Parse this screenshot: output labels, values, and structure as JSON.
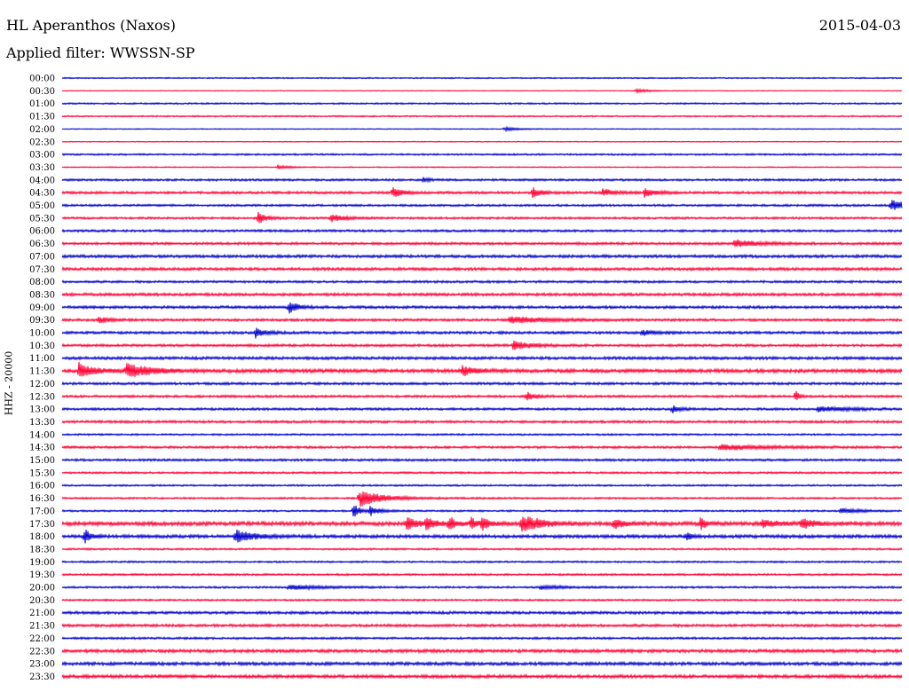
{
  "header": {
    "station": "HL Aperanthos (Naxos)",
    "date": "2015-04-03",
    "filter_label": "Applied filter:",
    "filter_name": "WWSSN-SP"
  },
  "channel_label": "HHZ - 20000",
  "colors": {
    "trace_even": "#0000cc",
    "trace_odd": "#ff0033",
    "text": "#000000",
    "background": "#ffffff"
  },
  "chart_data": {
    "type": "line",
    "x_unit": "minutes after row start",
    "x_range": [
      0,
      30
    ],
    "row_labels": [
      "00:00",
      "00:30",
      "01:00",
      "01:30",
      "02:00",
      "02:30",
      "03:00",
      "03:30",
      "04:00",
      "04:30",
      "05:00",
      "05:30",
      "06:00",
      "06:30",
      "07:00",
      "07:30",
      "08:00",
      "08:30",
      "09:00",
      "09:30",
      "10:00",
      "10:30",
      "11:00",
      "11:30",
      "12:00",
      "12:30",
      "13:00",
      "13:30",
      "14:00",
      "14:30",
      "15:00",
      "15:30",
      "16:00",
      "16:30",
      "17:00",
      "17:30",
      "18:00",
      "18:30",
      "19:00",
      "19:30",
      "20:00",
      "20:30",
      "21:00",
      "21:30",
      "22:00",
      "22:30",
      "23:00",
      "23:30"
    ],
    "noise": [
      0.7,
      0.4,
      0.9,
      0.8,
      0.5,
      0.5,
      1.0,
      0.6,
      1.2,
      1.4,
      1.2,
      1.2,
      1.3,
      1.4,
      1.6,
      1.6,
      1.3,
      1.6,
      1.5,
      1.4,
      1.5,
      1.4,
      1.6,
      2.0,
      1.4,
      1.3,
      1.3,
      1.4,
      1.0,
      1.3,
      1.3,
      1.1,
      1.0,
      1.0,
      1.0,
      2.2,
      1.8,
      1.0,
      1.0,
      1.1,
      1.1,
      1.0,
      1.5,
      1.5,
      1.2,
      1.8,
      1.8,
      1.8
    ],
    "events": [
      {
        "row": "00:30",
        "t": 20.5,
        "amp": 2,
        "dur": 0.5
      },
      {
        "row": "02:00",
        "t": 15.8,
        "amp": 2,
        "dur": 0.5
      },
      {
        "row": "03:30",
        "t": 7.7,
        "amp": 2,
        "dur": 0.4
      },
      {
        "row": "04:00",
        "t": 12.9,
        "amp": 3,
        "dur": 0.2
      },
      {
        "row": "04:30",
        "t": 11.8,
        "amp": 7,
        "dur": 0.3
      },
      {
        "row": "04:30",
        "t": 16.8,
        "amp": 6,
        "dur": 0.3
      },
      {
        "row": "04:30",
        "t": 19.3,
        "amp": 4,
        "dur": 0.4
      },
      {
        "row": "04:30",
        "t": 20.8,
        "amp": 5,
        "dur": 0.4
      },
      {
        "row": "05:00",
        "t": 29.6,
        "amp": 6,
        "dur": 0.6
      },
      {
        "row": "05:30",
        "t": 7.0,
        "amp": 7,
        "dur": 0.3
      },
      {
        "row": "05:30",
        "t": 9.6,
        "amp": 4,
        "dur": 0.5
      },
      {
        "row": "06:30",
        "t": 24.0,
        "amp": 4,
        "dur": 0.8
      },
      {
        "row": "09:00",
        "t": 8.1,
        "amp": 7,
        "dur": 0.3
      },
      {
        "row": "09:30",
        "t": 1.3,
        "amp": 4,
        "dur": 0.3
      },
      {
        "row": "09:30",
        "t": 16.0,
        "amp": 4,
        "dur": 1.2
      },
      {
        "row": "10:00",
        "t": 6.9,
        "amp": 6,
        "dur": 0.3
      },
      {
        "row": "10:00",
        "t": 20.7,
        "amp": 3,
        "dur": 0.4
      },
      {
        "row": "10:30",
        "t": 16.1,
        "amp": 5,
        "dur": 0.6
      },
      {
        "row": "11:30",
        "t": 0.6,
        "amp": 9,
        "dur": 0.5
      },
      {
        "row": "11:30",
        "t": 2.3,
        "amp": 8,
        "dur": 0.8
      },
      {
        "row": "11:30",
        "t": 14.3,
        "amp": 5,
        "dur": 0.5
      },
      {
        "row": "12:30",
        "t": 16.6,
        "amp": 5,
        "dur": 0.3
      },
      {
        "row": "12:30",
        "t": 26.2,
        "amp": 9,
        "dur": 0.1
      },
      {
        "row": "13:00",
        "t": 21.8,
        "amp": 4,
        "dur": 0.3
      },
      {
        "row": "13:00",
        "t": 27.0,
        "amp": 3,
        "dur": 1.0
      },
      {
        "row": "14:30",
        "t": 23.5,
        "amp": 3,
        "dur": 1.5
      },
      {
        "row": "16:30",
        "t": 10.6,
        "amp": 10,
        "dur": 0.8
      },
      {
        "row": "17:00",
        "t": 10.4,
        "amp": 9,
        "dur": 0.2
      },
      {
        "row": "17:00",
        "t": 11.0,
        "amp": 5,
        "dur": 0.3
      },
      {
        "row": "17:00",
        "t": 27.8,
        "amp": 3,
        "dur": 0.6
      },
      {
        "row": "17:30",
        "t": 12.3,
        "amp": 7,
        "dur": 0.4
      },
      {
        "row": "17:30",
        "t": 13.0,
        "amp": 6,
        "dur": 0.3
      },
      {
        "row": "17:30",
        "t": 13.8,
        "amp": 9,
        "dur": 0.2
      },
      {
        "row": "17:30",
        "t": 14.6,
        "amp": 7,
        "dur": 0.2
      },
      {
        "row": "17:30",
        "t": 15.0,
        "amp": 8,
        "dur": 0.2
      },
      {
        "row": "17:30",
        "t": 16.4,
        "amp": 11,
        "dur": 0.6
      },
      {
        "row": "17:30",
        "t": 19.7,
        "amp": 6,
        "dur": 0.3
      },
      {
        "row": "17:30",
        "t": 22.8,
        "amp": 7,
        "dur": 0.2
      },
      {
        "row": "17:30",
        "t": 25.0,
        "amp": 5,
        "dur": 0.4
      },
      {
        "row": "17:30",
        "t": 26.4,
        "amp": 6,
        "dur": 0.4
      },
      {
        "row": "18:00",
        "t": 0.8,
        "amp": 9,
        "dur": 0.2
      },
      {
        "row": "18:00",
        "t": 6.2,
        "amp": 7,
        "dur": 0.6
      },
      {
        "row": "18:00",
        "t": 22.3,
        "amp": 5,
        "dur": 0.2
      },
      {
        "row": "20:00",
        "t": 8.1,
        "amp": 3,
        "dur": 1.0
      },
      {
        "row": "20:00",
        "t": 17.1,
        "amp": 2,
        "dur": 0.8
      }
    ]
  }
}
